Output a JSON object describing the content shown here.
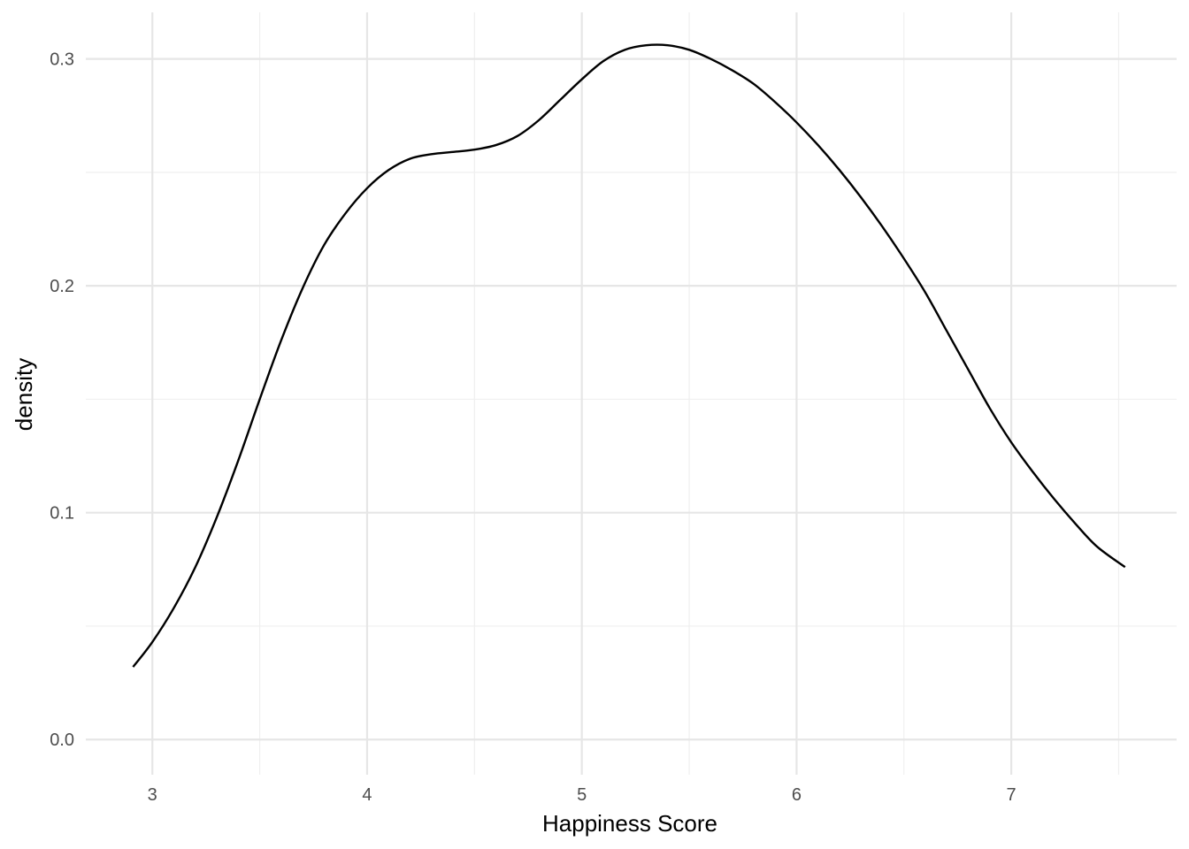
{
  "chart_data": {
    "type": "line",
    "title": "",
    "xlabel": "Happiness Score",
    "ylabel": "density",
    "xlim": [
      2.69,
      7.77
    ],
    "ylim": [
      -0.0155,
      0.3205
    ],
    "x_ticks": [
      3,
      4,
      5,
      6,
      7
    ],
    "y_ticks": [
      0.0,
      0.1,
      0.2,
      0.3
    ],
    "x_tick_labels": [
      "3",
      "4",
      "5",
      "6",
      "7"
    ],
    "y_tick_labels": [
      "0.0",
      "0.1",
      "0.2",
      "0.3"
    ],
    "grid": true,
    "legend": "none",
    "colors": {
      "line": "#000000",
      "grid": "#e6e6e6",
      "background": "#ffffff"
    },
    "series": [
      {
        "x": [
          2.91,
          3.0,
          3.1,
          3.2,
          3.3,
          3.4,
          3.5,
          3.6,
          3.7,
          3.8,
          3.9,
          4.0,
          4.1,
          4.2,
          4.3,
          4.4,
          4.5,
          4.6,
          4.7,
          4.8,
          4.9,
          5.0,
          5.1,
          5.2,
          5.3,
          5.4,
          5.5,
          5.6,
          5.7,
          5.8,
          5.9,
          6.0,
          6.1,
          6.2,
          6.3,
          6.4,
          6.5,
          6.6,
          6.7,
          6.8,
          6.9,
          7.0,
          7.1,
          7.2,
          7.3,
          7.4,
          7.53
        ],
        "y": [
          0.032,
          0.043,
          0.058,
          0.076,
          0.098,
          0.123,
          0.15,
          0.176,
          0.199,
          0.218,
          0.232,
          0.243,
          0.251,
          0.256,
          0.258,
          0.259,
          0.26,
          0.262,
          0.266,
          0.273,
          0.282,
          0.291,
          0.299,
          0.304,
          0.306,
          0.306,
          0.304,
          0.3,
          0.295,
          0.289,
          0.281,
          0.272,
          0.262,
          0.251,
          0.239,
          0.226,
          0.212,
          0.197,
          0.18,
          0.163,
          0.146,
          0.131,
          0.118,
          0.106,
          0.095,
          0.085,
          0.076
        ]
      }
    ]
  }
}
